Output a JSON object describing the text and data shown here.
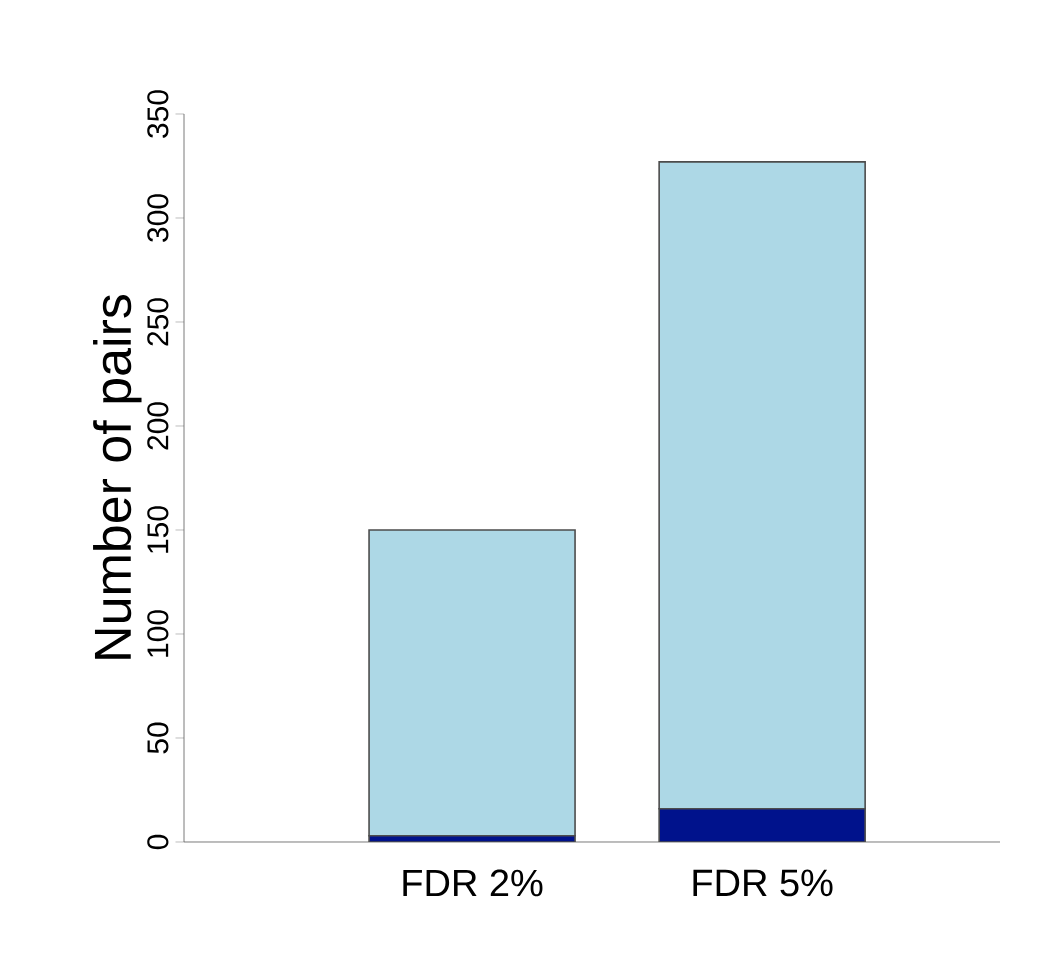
{
  "chart_data": {
    "type": "bar",
    "ylabel": "Number of pairs",
    "categories": [
      "FDR 2%",
      "FDR 5%"
    ],
    "stacked": true,
    "series": [
      {
        "color": "#00128c",
        "values": [
          3,
          16
        ]
      },
      {
        "color": "#add8e6",
        "values": [
          147,
          311
        ]
      }
    ],
    "ylim": [
      0,
      350
    ],
    "yticks": [
      0,
      50,
      100,
      150,
      200,
      250,
      300,
      350
    ]
  }
}
